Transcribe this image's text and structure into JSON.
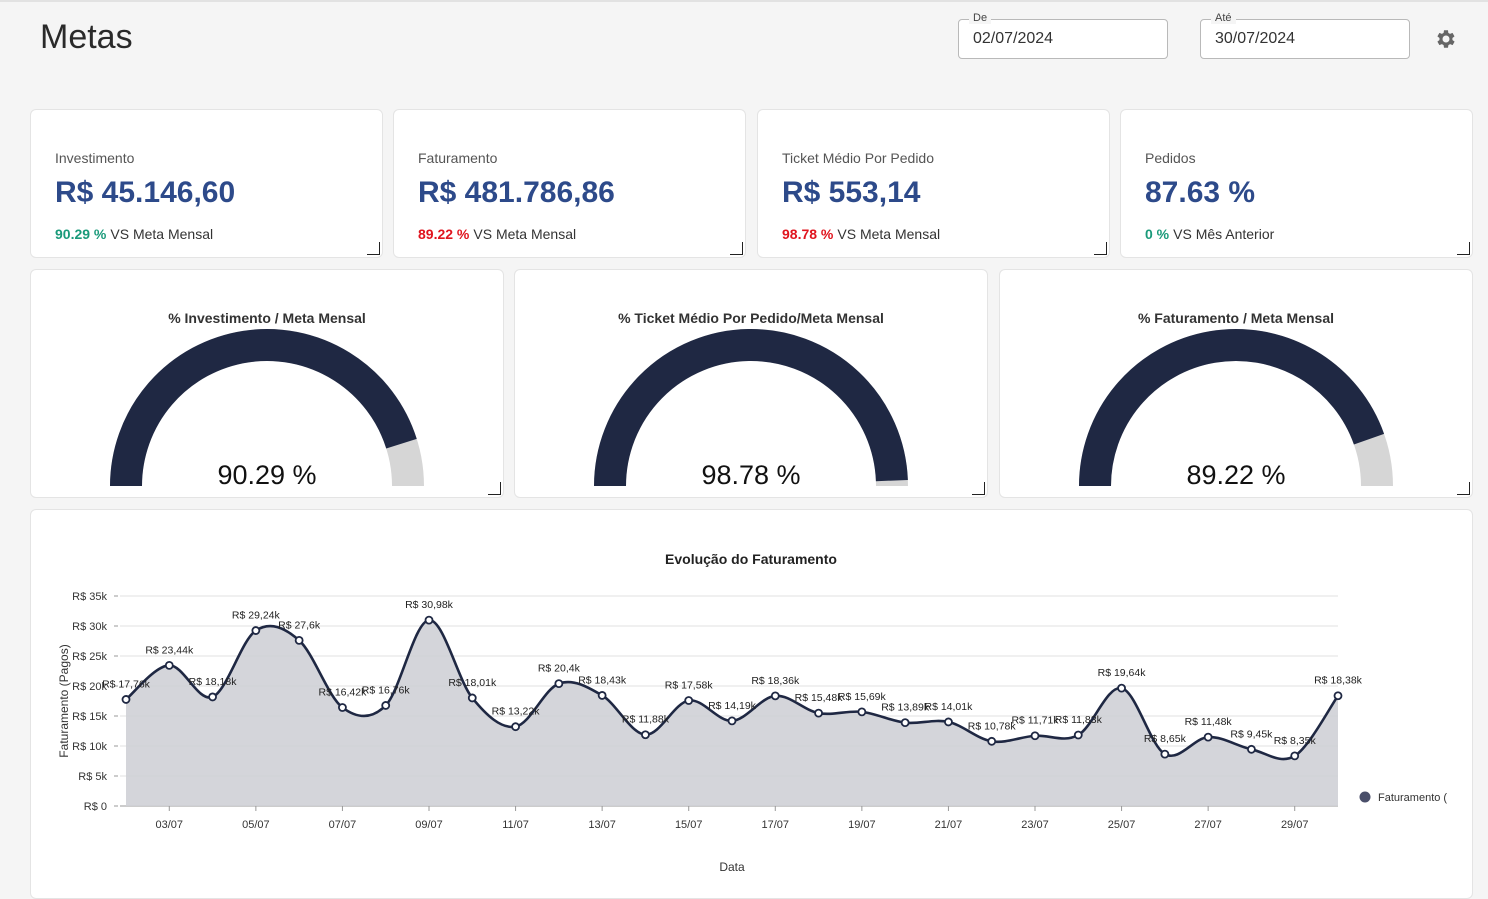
{
  "page": {
    "title": "Metas"
  },
  "filters": {
    "from": {
      "label": "De",
      "value": "02/07/2024"
    },
    "to": {
      "label": "Até",
      "value": "30/07/2024"
    }
  },
  "settings_icon": "gear-icon",
  "kpis": [
    {
      "label": "Investimento",
      "value": "R$ 45.146,60",
      "pct": "90.29 %",
      "pct_color": "#1a9a7a",
      "suffix": "VS Meta Mensal"
    },
    {
      "label": "Faturamento",
      "value": "R$ 481.786,86",
      "pct": "89.22 %",
      "pct_color": "#e0141e",
      "suffix": "VS Meta Mensal"
    },
    {
      "label": "Ticket Médio Por Pedido",
      "value": "R$ 553,14",
      "pct": "98.78 %",
      "pct_color": "#e0141e",
      "suffix": "VS Meta Mensal"
    },
    {
      "label": "Pedidos",
      "value": "87.63 %",
      "pct": "0 %",
      "pct_color": "#1a9a7a",
      "suffix": "VS Mês Anterior"
    }
  ],
  "gauges": [
    {
      "title": "% Investimento / Meta Mensal",
      "value_label": "90.29 %",
      "fraction": 0.9029
    },
    {
      "title": "% Ticket Médio Por Pedido/Meta Mensal",
      "value_label": "98.78 %",
      "fraction": 0.9878
    },
    {
      "title": "% Faturamento / Meta Mensal",
      "value_label": "89.22 %",
      "fraction": 0.8922
    }
  ],
  "colors": {
    "accent": "#2d4a8a",
    "gauge_fill": "#1f2843",
    "gauge_track": "#d6d6d6",
    "area_fill": "#cfd0d6",
    "line": "#1f2843"
  },
  "chart_data": {
    "type": "area",
    "title": "Evolução do Faturamento",
    "xlabel": "Data",
    "ylabel": "Faturamento (Pagos)",
    "ylim": [
      0,
      35000
    ],
    "y_ticks": [
      "R$ 0",
      "R$ 5k",
      "R$ 10k",
      "R$ 15k",
      "R$ 20k",
      "R$ 25k",
      "R$ 30k",
      "R$ 35k"
    ],
    "x": [
      "02/07",
      "03/07",
      "04/07",
      "05/07",
      "06/07",
      "07/07",
      "08/07",
      "09/07",
      "10/07",
      "11/07",
      "12/07",
      "13/07",
      "14/07",
      "15/07",
      "16/07",
      "17/07",
      "18/07",
      "19/07",
      "20/07",
      "21/07",
      "22/07",
      "23/07",
      "24/07",
      "25/07",
      "26/07",
      "27/07",
      "28/07",
      "29/07",
      "30/07"
    ],
    "x_tick_labels": [
      "03/07",
      "05/07",
      "07/07",
      "09/07",
      "11/07",
      "13/07",
      "15/07",
      "17/07",
      "19/07",
      "21/07",
      "23/07",
      "25/07",
      "27/07",
      "29/07"
    ],
    "legend": "right",
    "grid": true,
    "series": [
      {
        "name": "Faturamento (",
        "values": [
          17760,
          23440,
          18180,
          29240,
          27600,
          16420,
          16760,
          30980,
          18010,
          13220,
          20400,
          18430,
          11880,
          17580,
          14190,
          18360,
          15480,
          15690,
          13890,
          14010,
          10780,
          11710,
          11830,
          19640,
          8650,
          11480,
          9450,
          8350,
          18380
        ],
        "labels": [
          "R$ 17,76k",
          "R$ 23,44k",
          "R$ 18,18k",
          "R$ 29,24k",
          "R$ 27,6k",
          "R$ 16,42k",
          "R$ 16,76k",
          "R$ 30,98k",
          "R$ 18,01k",
          "R$ 13,22k",
          "R$ 20,4k",
          "R$ 18,43k",
          "R$ 11,88k",
          "R$ 17,58k",
          "R$ 14,19k",
          "R$ 18,36k",
          "R$ 15,48k",
          "R$ 15,69k",
          "R$ 13,89k",
          "R$ 14,01k",
          "R$ 10,78k",
          "R$ 11,71k",
          "R$ 11,83k",
          "R$ 19,64k",
          "R$ 8,65k",
          "R$ 11,48k",
          "R$ 9,45k",
          "R$ 8,35k",
          "R$ 18,38k"
        ]
      }
    ]
  }
}
